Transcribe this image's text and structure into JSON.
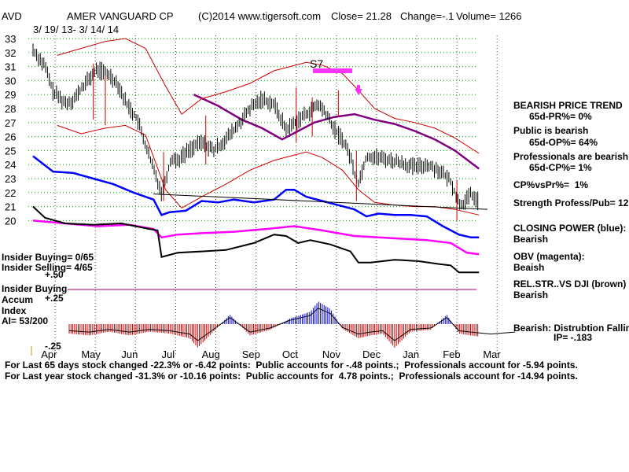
{
  "header": {
    "ticker": "AVD",
    "company": "AMER VANGUARD CP",
    "source": "(C)2014 www.tigersoft.com",
    "close": "Close=  21.28",
    "change": "Change=-.1",
    "volume": "Volume= 1266",
    "date_range": "3/ 19/ 13-  3/ 14/ 14"
  },
  "signal_label": "S7",
  "right_panel": {
    "bearish_trend": "BEARISH PRICE TREND",
    "pr": "65d-PR%= 0%",
    "public": "Public is bearish",
    "op": "65d-OP%= 64%",
    "professionals": "Professionals are bearish",
    "cp": "65d-CP%= 1%",
    "cpvspr": "CP%vsPr%=  1%",
    "strength": "Strength Profess/Pub= 12",
    "closing_power": "CLOSING POWER (blue):",
    "closing_power_value": "Bearish",
    "obv": "OBV (magenta):",
    "obv_value": "Beaish",
    "relstr": "REL.STR..VS DJI (brown)",
    "relstr_value": "Bearish",
    "distribution": "Bearish: Distrubtion Falling",
    "ip": "IP= -.183"
  },
  "left_panel": {
    "insider_buying_count": "Insider Buying= 0/65",
    "insider_selling_count": "Insider Selling= 4/65",
    "plus50": "+.50",
    "insider_buying": "Insider Buying",
    "accum": "Accum",
    "plus25": "+.25",
    "index": "Index",
    "ai": "AI= 53/200",
    "minus25": "-.25"
  },
  "footer": {
    "line1": "For Last 65 days stock changed -22.3% or -6.42 points:  Public accounts for -.48 points.;  Professionals account for -5.94 points.",
    "line2": "For Last year stock changed -31.3% or -10.16 points:  Public accounts for  4.78 points.;  Professionals account for -14.94 points."
  },
  "colors": {
    "price": "#000000",
    "band": "#cc0000",
    "ma": "#800080",
    "closing_power": "#0000ff",
    "obv": "#ff00ff",
    "relstr": "#000000",
    "accum_pos": "#0000cc",
    "accum_neg": "#cc0000",
    "grid": "#00aa00"
  },
  "chart_data": {
    "type": "line",
    "title": "AMER VANGUARD CP",
    "y_ticks": [
      "33",
      "32",
      "31",
      "30",
      "29",
      "28",
      "27",
      "26",
      "25",
      "24",
      "23",
      "22",
      "21",
      "20"
    ],
    "ylim": [
      20,
      33
    ],
    "x_ticks": [
      "Apr",
      "May",
      "Jun",
      "Jul",
      "Aug",
      "Sep",
      "Oct",
      "Nov",
      "Dec",
      "Jan",
      "Feb",
      "Mar"
    ],
    "grid": true,
    "series": [
      {
        "key": "price",
        "x": [
          0,
          0.3,
          0.5,
          0.8,
          1.0,
          1.3,
          1.6,
          1.9,
          2.1,
          2.3,
          2.6,
          2.9,
          3.2,
          3.35,
          3.45,
          3.6,
          3.9,
          4.2,
          4.5,
          4.8,
          5.1,
          5.4,
          5.7,
          6.0,
          6.3,
          6.6,
          6.9,
          7.1,
          7.3,
          7.5,
          7.7,
          7.9,
          8.0,
          8.1,
          8.3,
          8.6,
          8.9,
          9.2,
          9.5,
          9.8,
          10.1,
          10.4,
          10.6,
          10.75,
          10.9,
          11.1
        ],
        "values": [
          32.2,
          31.0,
          29.2,
          28.4,
          28.6,
          29.8,
          30.8,
          30.4,
          29.8,
          28.5,
          27.2,
          24.5,
          22.0,
          23.5,
          24.5,
          24.3,
          25.1,
          25.6,
          25.0,
          25.8,
          26.8,
          28.0,
          28.7,
          28.3,
          26.5,
          27.2,
          27.8,
          28.3,
          27.6,
          26.5,
          25.8,
          24.6,
          23.4,
          22.7,
          24.6,
          24.5,
          24.3,
          24.1,
          23.8,
          24.0,
          23.6,
          22.8,
          21.2,
          21.3,
          21.9,
          21.3
        ]
      },
      {
        "key": "ma",
        "x": [
          4.0,
          4.6,
          5.2,
          5.7,
          6.2,
          6.6,
          7.0,
          7.5,
          8.0,
          8.5,
          9.0,
          9.5,
          10.0,
          10.5,
          11.1
        ],
        "values": [
          29.0,
          28.2,
          27.2,
          26.6,
          25.8,
          26.4,
          27.0,
          27.4,
          27.6,
          27.2,
          26.9,
          26.4,
          25.8,
          25.0,
          23.7
        ]
      },
      {
        "key": "upper_band",
        "x": [
          0.6,
          1.2,
          1.8,
          2.3,
          2.8,
          3.3,
          3.7,
          4.2,
          4.8,
          5.4,
          6.0,
          6.4,
          6.8,
          7.2,
          7.7,
          8.1,
          8.5,
          9.0,
          9.5,
          10.0,
          10.5,
          11.1
        ],
        "values": [
          31.8,
          32.3,
          32.8,
          33.0,
          32.3,
          29.6,
          27.6,
          28.7,
          29.2,
          29.8,
          30.7,
          31.0,
          31.3,
          31.1,
          30.5,
          29.3,
          28.0,
          27.3,
          27.0,
          26.6,
          25.9,
          24.8
        ]
      },
      {
        "key": "lower_band",
        "x": [
          0.6,
          1.2,
          1.8,
          2.3,
          2.8,
          3.3,
          3.7,
          4.2,
          4.8,
          5.4,
          6.0,
          6.4,
          6.8,
          7.2,
          7.7,
          8.1,
          8.5,
          9.0,
          9.5,
          10.0,
          10.5,
          11.1
        ],
        "values": [
          26.8,
          26.2,
          26.6,
          26.8,
          26.1,
          22.2,
          20.9,
          21.7,
          22.6,
          23.6,
          24.3,
          24.6,
          24.9,
          24.5,
          23.6,
          22.2,
          21.3,
          21.1,
          21.0,
          21.0,
          20.8,
          20.4
        ]
      }
    ],
    "indicators": [
      {
        "key": "closing_power",
        "name": "CLOSING POWER (blue)",
        "x": [
          0,
          0.5,
          1.0,
          1.5,
          2.0,
          2.5,
          3.0,
          3.2,
          3.4,
          3.8,
          4.2,
          4.6,
          5.0,
          5.5,
          6.0,
          6.3,
          6.5,
          6.8,
          7.2,
          7.6,
          8.0,
          8.3,
          8.6,
          9.0,
          9.4,
          9.8,
          10.2,
          10.6,
          10.9,
          11.1
        ],
        "values": [
          24.6,
          23.5,
          23.4,
          23.0,
          22.6,
          22.0,
          21.5,
          20.4,
          20.6,
          20.7,
          21.4,
          21.3,
          21.5,
          21.3,
          21.5,
          22.2,
          22.2,
          21.7,
          21.4,
          21.1,
          20.8,
          20.3,
          20.5,
          20.4,
          20.4,
          20.3,
          19.6,
          19.0,
          18.8,
          18.8
        ]
      },
      {
        "key": "obv",
        "name": "OBV (magenta)",
        "x": [
          0,
          0.8,
          1.6,
          2.4,
          3.0,
          3.2,
          3.6,
          4.2,
          5.0,
          5.8,
          6.5,
          7.2,
          8.0,
          8.6,
          9.2,
          9.8,
          10.4,
          10.8,
          11.1
        ],
        "values": [
          20.0,
          19.8,
          19.6,
          19.7,
          19.4,
          18.8,
          19.0,
          19.1,
          19.2,
          19.4,
          19.6,
          19.3,
          18.9,
          18.8,
          18.7,
          18.6,
          18.4,
          17.7,
          17.6
        ]
      },
      {
        "key": "relstr",
        "name": "REL.STR..VS DJI (brown)",
        "x": [
          0,
          0.3,
          0.8,
          1.5,
          2.2,
          2.9,
          3.1,
          3.2,
          3.6,
          4.2,
          4.8,
          5.5,
          6.0,
          6.3,
          6.6,
          6.9,
          7.4,
          7.9,
          8.1,
          8.4,
          9.0,
          9.6,
          10.1,
          10.4,
          10.6,
          10.9,
          11.1
        ],
        "values": [
          21.0,
          20.2,
          19.8,
          19.7,
          19.8,
          19.4,
          19.3,
          17.4,
          17.7,
          17.8,
          17.9,
          18.4,
          19.0,
          18.9,
          18.4,
          18.6,
          18.3,
          17.8,
          17.0,
          17.0,
          17.2,
          17.1,
          16.9,
          16.8,
          16.3,
          16.3,
          16.3
        ]
      }
    ],
    "accum_index_profile": {
      "x": [
        0,
        0.5,
        1.0,
        1.5,
        2.0,
        2.5,
        3.0,
        3.2,
        3.5,
        4.0,
        4.5,
        5.0,
        5.5,
        6.0,
        6.2,
        6.5,
        6.8,
        7.2,
        7.5,
        7.8,
        8.1,
        8.5,
        9.0,
        9.4,
        9.7,
        10.0,
        10.5,
        11.1
      ],
      "values": [
        -0.1,
        -0.12,
        -0.08,
        -0.12,
        -0.08,
        -0.1,
        -0.15,
        -0.25,
        -0.12,
        0.1,
        -0.12,
        -0.06,
        0.06,
        0.13,
        0.24,
        0.16,
        -0.05,
        -0.15,
        -0.12,
        -0.1,
        -0.25,
        -0.08,
        -0.06,
        0.1,
        -0.1,
        -0.12,
        -0.15,
        -0.12
      ]
    }
  }
}
